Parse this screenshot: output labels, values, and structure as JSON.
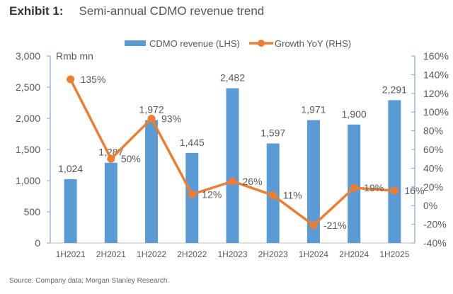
{
  "header": {
    "exhibit": "Exhibit 1:",
    "title": "Semi-annual CDMO revenue trend"
  },
  "footer": {
    "source": "Source: Company data; Morgan Stanley Research."
  },
  "chart_data": {
    "type": "bar",
    "title": "Semi-annual CDMO revenue trend",
    "categories": [
      "1H2021",
      "2H2021",
      "1H2022",
      "2H2022",
      "1H2023",
      "2H2023",
      "1H2024",
      "2H2024",
      "1H2025"
    ],
    "series": [
      {
        "name": "CDMO revenue (LHS)",
        "type": "bar",
        "axis": "left",
        "color": "#5B9BD5",
        "values": [
          1024,
          1287,
          1972,
          1445,
          2482,
          1597,
          1971,
          1900,
          2291
        ],
        "labels": [
          "1,024",
          "1,287",
          "1,972",
          "1,445",
          "2,482",
          "1,597",
          "1,971",
          "1,900",
          "2,291"
        ]
      },
      {
        "name": "Growth YoY (RHS)",
        "type": "line",
        "axis": "right",
        "color": "#ED7D31",
        "values": [
          135,
          50,
          93,
          12,
          26,
          11,
          -21,
          19,
          16
        ],
        "labels": [
          "135%",
          "50%",
          "93%",
          "12%",
          "26%",
          "11%",
          "-21%",
          "19%",
          "16%"
        ]
      }
    ],
    "left_axis": {
      "label": "Rmb mn",
      "range": [
        0,
        3000
      ],
      "ticks": [
        0,
        500,
        1000,
        1500,
        2000,
        2500,
        3000
      ],
      "tick_labels": [
        "0",
        "500",
        "1,000",
        "1,500",
        "2,000",
        "2,500",
        "3,000"
      ]
    },
    "right_axis": {
      "range": [
        -40,
        160
      ],
      "ticks": [
        -40,
        -20,
        0,
        20,
        40,
        60,
        80,
        100,
        120,
        140,
        160
      ],
      "tick_labels": [
        "-40%",
        "-20%",
        "0%",
        "20%",
        "40%",
        "60%",
        "80%",
        "100%",
        "120%",
        "140%",
        "160%"
      ]
    },
    "legend": {
      "position": "top",
      "entries": [
        "CDMO revenue (LHS)",
        "Growth YoY (RHS)"
      ]
    },
    "grid": false
  }
}
